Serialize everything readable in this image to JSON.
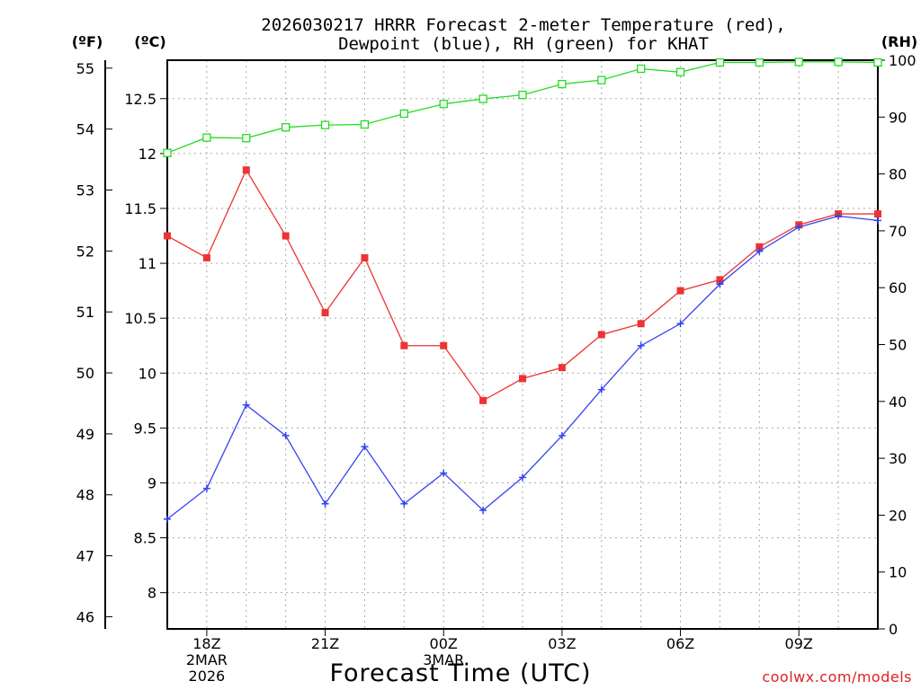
{
  "chart_data": {
    "type": "line",
    "title_line1": "2026030217 HRRR Forecast 2-meter Temperature (red),",
    "title_line2": "Dewpoint (blue), RH (green) for KHAT",
    "xlabel": "Forecast Time (UTC)",
    "watermark": "coolwx.com/models",
    "unit_labels": {
      "fahrenheit": "(ºF)",
      "celsius": "(ºC)",
      "rh": "(RH)"
    },
    "x_hours": [
      17,
      18,
      19,
      20,
      21,
      22,
      23,
      24,
      25,
      26,
      27,
      28,
      29,
      30,
      31,
      32,
      33,
      34,
      35
    ],
    "x_ticks": [
      {
        "hour": 18,
        "lines": [
          "18Z",
          "2MAR",
          "2026"
        ]
      },
      {
        "hour": 21,
        "lines": [
          "21Z"
        ]
      },
      {
        "hour": 24,
        "lines": [
          "00Z",
          "3MAR"
        ]
      },
      {
        "hour": 27,
        "lines": [
          "03Z"
        ]
      },
      {
        "hour": 30,
        "lines": [
          "06Z"
        ]
      },
      {
        "hour": 33,
        "lines": [
          "09Z"
        ]
      }
    ],
    "xlim": [
      17,
      35
    ],
    "celsius_axis": {
      "ylim": [
        7.67,
        12.85
      ],
      "ticks": [
        "8",
        "8.5",
        "9",
        "9.5",
        "10",
        "10.5",
        "11",
        "11.5",
        "12",
        "12.5"
      ]
    },
    "fahrenheit_axis": {
      "ylim": [
        45.8,
        55.13
      ],
      "ticks": [
        "46",
        "47",
        "48",
        "49",
        "50",
        "51",
        "52",
        "53",
        "54",
        "55"
      ]
    },
    "rh_axis": {
      "ylim": [
        0,
        100
      ],
      "ticks": [
        "0",
        "10",
        "20",
        "30",
        "40",
        "50",
        "60",
        "70",
        "80",
        "90",
        "100"
      ]
    },
    "series": [
      {
        "name": "Temperature",
        "axis": "celsius",
        "color": "#ee3333",
        "marker": "filled-square",
        "values": [
          11.25,
          11.05,
          11.85,
          11.25,
          10.55,
          11.05,
          10.25,
          10.25,
          9.75,
          9.95,
          10.05,
          10.35,
          10.45,
          10.75,
          10.85,
          11.15,
          11.35,
          11.45,
          11.45
        ]
      },
      {
        "name": "Dewpoint",
        "axis": "celsius",
        "color": "#3344ee",
        "marker": "plus",
        "values": [
          8.67,
          8.95,
          9.71,
          9.43,
          8.81,
          9.33,
          8.81,
          9.09,
          8.75,
          9.05,
          9.43,
          9.85,
          10.25,
          10.45,
          10.81,
          11.11,
          11.33,
          11.43,
          11.39
        ]
      },
      {
        "name": "RH",
        "axis": "rh",
        "color": "#22dd22",
        "marker": "open-square",
        "values": [
          83.7,
          86.4,
          86.3,
          88.2,
          88.6,
          88.7,
          90.6,
          92.3,
          93.2,
          93.9,
          95.8,
          96.5,
          98.5,
          97.9,
          99.6,
          99.6,
          99.7,
          99.7,
          99.6
        ]
      }
    ]
  }
}
